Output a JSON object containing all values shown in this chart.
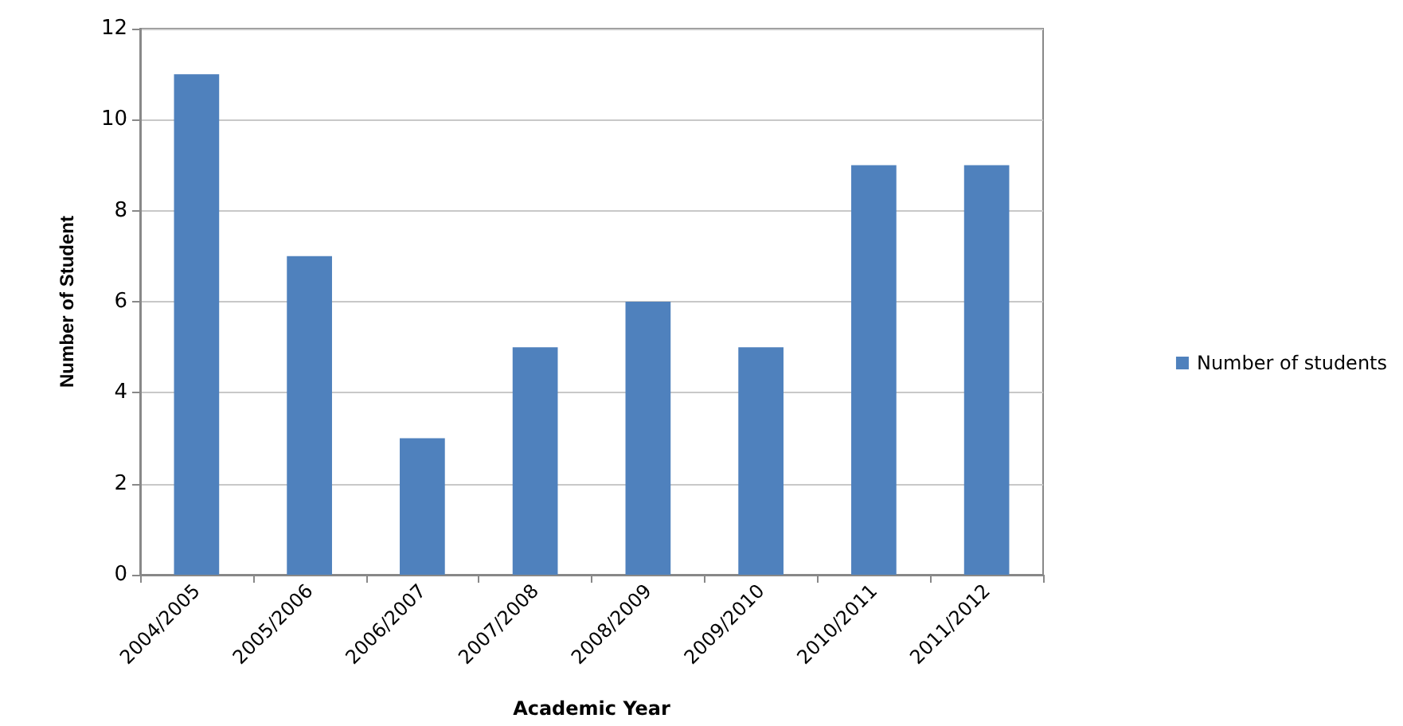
{
  "chart_data": {
    "type": "bar",
    "xlabel": "Academic Year",
    "ylabel": "Number of Student",
    "categories": [
      "2004/2005",
      "2005/2006",
      "2006/2007",
      "2007/2008",
      "2008/2009",
      "2009/2010",
      "2010/2011",
      "2011/2012"
    ],
    "series": [
      {
        "name": "Number of students",
        "color": "#4f81bd",
        "values": [
          11,
          7,
          3,
          5,
          6,
          5,
          9,
          9
        ]
      }
    ],
    "ylim": [
      0,
      12
    ],
    "yticks": [
      0,
      2,
      4,
      6,
      8,
      10,
      12
    ],
    "grid": "y",
    "legend": "right"
  }
}
